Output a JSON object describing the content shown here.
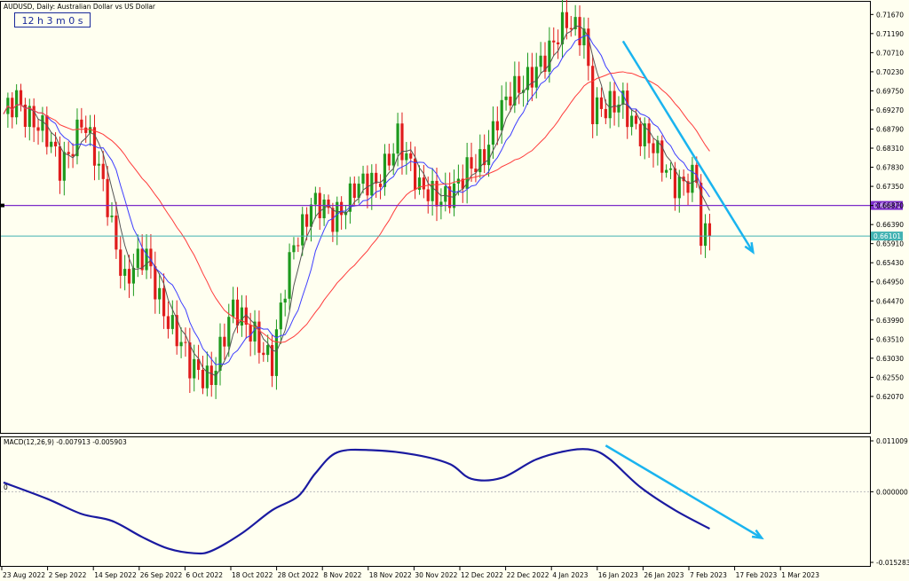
{
  "window": {
    "title": "AUDUSD, Daily:  Australian Dollar vs US Dollar",
    "timer": "12 h 3 m 0 s"
  },
  "colors": {
    "background": "#fffff0",
    "bull": "#1e9a1e",
    "bear": "#e01c1c",
    "ma_fast": "#555555",
    "ma_mid": "#3d3dff",
    "ma_slow": "#ff3a3a",
    "hline": "#7b2cc9",
    "price_line": "#41b2b2",
    "trend_arrow": "#1ab4ef",
    "macd": "#1a1aa0"
  },
  "price_axis": {
    "ticks": [
      "0.71670",
      "0.71190",
      "0.70710",
      "0.70230",
      "0.69750",
      "0.69270",
      "0.68790",
      "0.68310",
      "0.67830",
      "0.67350",
      "0.66870",
      "0.66390",
      "0.65910",
      "0.65430",
      "0.64950",
      "0.64470",
      "0.63990",
      "0.63510",
      "0.63030",
      "0.62550",
      "0.62070"
    ],
    "hline_label": "0.66870",
    "current_label": "0.66101"
  },
  "macd_panel": {
    "label": "MACD(12,26,9) -0.007913 -0.005903",
    "zero_label": "0",
    "ticks": [
      "0.011009",
      "0.000000",
      "-0.015283"
    ]
  },
  "time_axis": {
    "ticks": [
      "23 Aug 2022",
      "2 Sep 2022",
      "14 Sep 2022",
      "26 Sep 2022",
      "6 Oct 2022",
      "18 Oct 2022",
      "28 Oct 2022",
      "8 Nov 2022",
      "18 Nov 2022",
      "30 Nov 2022",
      "12 Dec 2022",
      "22 Dec 2022",
      "4 Jan 2023",
      "16 Jan 2023",
      "26 Jan 2023",
      "7 Feb 2023",
      "17 Feb 2023",
      "1 Mar 2023"
    ]
  },
  "chart_data": {
    "type": "candlestick",
    "symbol": "AUDUSD",
    "timeframe": "Daily",
    "ylim": [
      0.616,
      0.719
    ],
    "horizontal_line": 0.6687,
    "current_price": 0.66101,
    "anchors": [
      {
        "d": 0,
        "c": 0.69
      },
      {
        "d": 3,
        "c": 0.697
      },
      {
        "d": 8,
        "c": 0.688
      },
      {
        "d": 13,
        "c": 0.679
      },
      {
        "d": 18,
        "c": 0.69
      },
      {
        "d": 24,
        "c": 0.67
      },
      {
        "d": 28,
        "c": 0.65
      },
      {
        "d": 33,
        "c": 0.655
      },
      {
        "d": 38,
        "c": 0.641
      },
      {
        "d": 43,
        "c": 0.627
      },
      {
        "d": 48,
        "c": 0.627
      },
      {
        "d": 53,
        "c": 0.641
      },
      {
        "d": 58,
        "c": 0.638
      },
      {
        "d": 62,
        "c": 0.628
      },
      {
        "d": 67,
        "c": 0.66
      },
      {
        "d": 71,
        "c": 0.67
      },
      {
        "d": 76,
        "c": 0.664
      },
      {
        "d": 81,
        "c": 0.675
      },
      {
        "d": 86,
        "c": 0.672
      },
      {
        "d": 91,
        "c": 0.688
      },
      {
        "d": 96,
        "c": 0.671
      },
      {
        "d": 100,
        "c": 0.672
      },
      {
        "d": 105,
        "c": 0.673
      },
      {
        "d": 110,
        "c": 0.68
      },
      {
        "d": 114,
        "c": 0.692
      },
      {
        "d": 119,
        "c": 0.697
      },
      {
        "d": 123,
        "c": 0.705
      },
      {
        "d": 127,
        "c": 0.708
      },
      {
        "d": 130,
        "c": 0.714
      },
      {
        "d": 134,
        "c": 0.714
      },
      {
        "d": 136,
        "c": 0.693
      },
      {
        "d": 139,
        "c": 0.691
      },
      {
        "d": 143,
        "c": 0.696
      },
      {
        "d": 147,
        "c": 0.687
      },
      {
        "d": 151,
        "c": 0.68
      },
      {
        "d": 155,
        "c": 0.676
      },
      {
        "d": 160,
        "c": 0.674
      },
      {
        "d": 161,
        "c": 0.658
      },
      {
        "d": 163,
        "c": 0.661
      }
    ],
    "trend_arrow_price": {
      "from": [
        143,
        0.71
      ],
      "to": [
        173,
        0.657
      ]
    },
    "macd": {
      "ylim": [
        -0.015283,
        0.011009
      ],
      "points": [
        [
          0,
          0.002
        ],
        [
          10,
          -0.0015
        ],
        [
          18,
          -0.0048
        ],
        [
          25,
          -0.0063
        ],
        [
          32,
          -0.0098
        ],
        [
          38,
          -0.0123
        ],
        [
          44,
          -0.0133
        ],
        [
          48,
          -0.0128
        ],
        [
          55,
          -0.009
        ],
        [
          62,
          -0.004
        ],
        [
          68,
          -0.001
        ],
        [
          72,
          0.004
        ],
        [
          77,
          0.0085
        ],
        [
          85,
          0.009
        ],
        [
          95,
          0.008
        ],
        [
          103,
          0.006
        ],
        [
          108,
          0.0028
        ],
        [
          115,
          0.003
        ],
        [
          123,
          0.007
        ],
        [
          131,
          0.009
        ],
        [
          136,
          0.009
        ],
        [
          140,
          0.007
        ],
        [
          147,
          0.001
        ],
        [
          155,
          -0.004
        ],
        [
          163,
          -0.008
        ]
      ],
      "trend_arrow": {
        "from": [
          139,
          0.01
        ],
        "to": [
          175,
          -0.01
        ]
      }
    }
  }
}
